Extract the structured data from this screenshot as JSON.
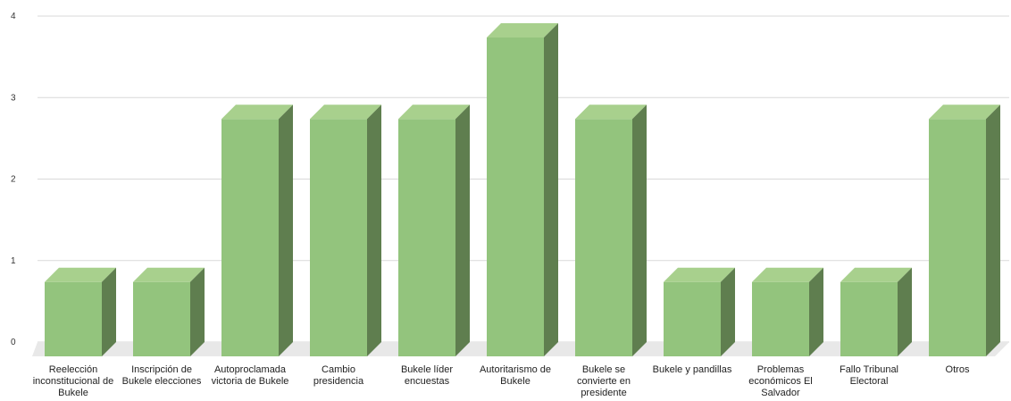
{
  "chart_data": {
    "type": "bar",
    "title": "",
    "xlabel": "",
    "ylabel": "",
    "ylim": [
      0,
      4
    ],
    "yticks": [
      "0",
      "1",
      "2",
      "3",
      "4"
    ],
    "grid": true,
    "legend": "none",
    "categories": [
      "Reelección inconstitucional de Bukele",
      "Inscripción de Bukele elecciones",
      "Autoproclamada victoria de Bukele",
      "Cambio presidencia",
      "Bukele líder encuestas",
      "Autoritarismo de Bukele",
      "Bukele se convierte en presidente",
      "Bukele y pandillas",
      "Problemas económicos El Salvador",
      "Fallo Tribunal Electoral",
      "Otros"
    ],
    "values": [
      1,
      1,
      3,
      3,
      3,
      4,
      3,
      1,
      1,
      1,
      3
    ],
    "colors": {
      "front": "#93c47d",
      "top": "#a8d08d",
      "side": "#5f7e4f",
      "floor": "#e8e8e8",
      "grid": "#d9d9d9"
    }
  }
}
